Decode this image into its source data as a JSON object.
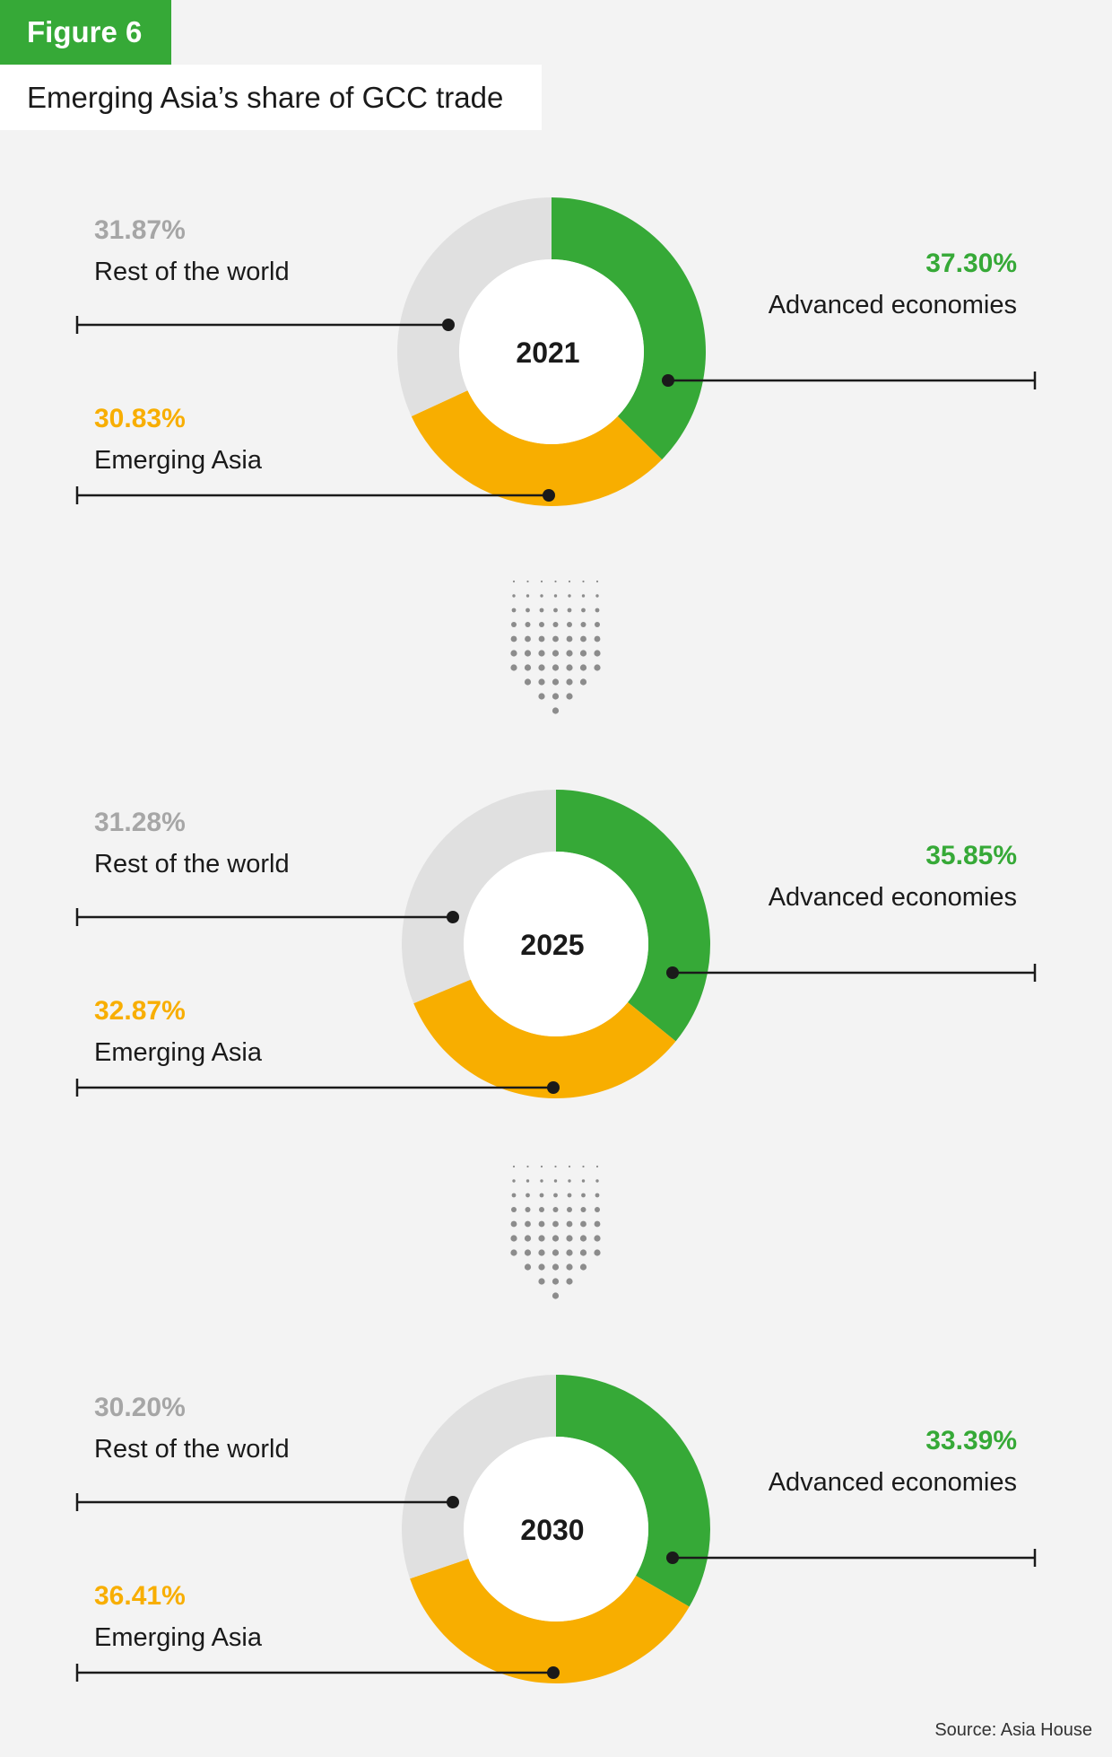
{
  "figure_label": "Figure 6",
  "title": "Emerging Asia’s share of GCC trade",
  "source": "Source: Asia House",
  "colors": {
    "advanced": "#36a937",
    "emerging": "#f8ae00",
    "rest": "#e0e0e0",
    "rest_text": "#a6a6a6",
    "arrow_dots": "#8c8c8c"
  },
  "chart_data": [
    {
      "type": "pie",
      "center_label": "2021",
      "categories": [
        "Advanced economies",
        "Emerging Asia",
        "Rest of the world"
      ],
      "values": [
        37.3,
        30.83,
        31.87
      ],
      "value_labels": [
        "37.30%",
        "30.83%",
        "31.87%"
      ]
    },
    {
      "type": "pie",
      "center_label": "2025",
      "categories": [
        "Advanced economies",
        "Emerging Asia",
        "Rest of the world"
      ],
      "values": [
        35.85,
        32.87,
        31.28
      ],
      "value_labels": [
        "35.85%",
        "32.87%",
        "31.28%"
      ]
    },
    {
      "type": "pie",
      "center_label": "2030",
      "categories": [
        "Advanced economies",
        "Emerging Asia",
        "Rest of the world"
      ],
      "values": [
        33.39,
        36.41,
        30.2
      ],
      "value_labels": [
        "33.39%",
        "36.41%",
        "30.20%"
      ]
    }
  ]
}
